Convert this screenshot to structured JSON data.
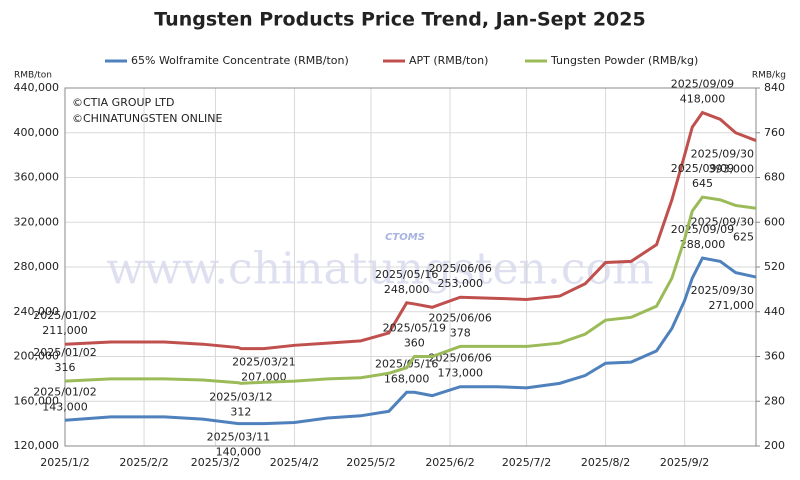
{
  "chart_data": {
    "type": "line",
    "title": "Tungsten Products Price Trend, Jan-Sept 2025",
    "y_unit": "RMB/ton",
    "y2_unit": "RMB/kg",
    "copyright": [
      "©CTIA GROUP LTD",
      "©CHINATUNGSTEN ONLINE"
    ],
    "watermark": "www.chinatungsten.com",
    "watermark_logo": "CTOMS",
    "x": [
      "2025/1/2",
      "2025/1/20",
      "2025/2/10",
      "2025/2/25",
      "2025/3/11",
      "2025/3/12",
      "2025/3/21",
      "2025/4/2",
      "2025/4/15",
      "2025/4/28",
      "2025/5/9",
      "2025/5/16",
      "2025/5/19",
      "2025/5/26",
      "2025/6/6",
      "2025/6/20",
      "2025/7/2",
      "2025/7/15",
      "2025/7/25",
      "2025/8/2",
      "2025/8/12",
      "2025/8/22",
      "2025/8/28",
      "2025/9/2",
      "2025/9/5",
      "2025/9/9",
      "2025/9/16",
      "2025/9/22",
      "2025/9/30"
    ],
    "xlim": [
      "2025/1/2",
      "2025/9/30"
    ],
    "xticks": [
      "2025/1/2",
      "2025/2/2",
      "2025/3/2",
      "2025/4/2",
      "2025/5/2",
      "2025/6/2",
      "2025/7/2",
      "2025/8/2",
      "2025/9/2"
    ],
    "ylim": [
      120000,
      440000
    ],
    "yticks": [
      {
        "value": 120000,
        "label": "120,000"
      },
      {
        "value": 160000,
        "label": "160,000"
      },
      {
        "value": 200000,
        "label": "200,000"
      },
      {
        "value": 240000,
        "label": "240,000"
      },
      {
        "value": 280000,
        "label": "280,000"
      },
      {
        "value": 320000,
        "label": "320,000"
      },
      {
        "value": 360000,
        "label": "360,000"
      },
      {
        "value": 400000,
        "label": "400,000"
      },
      {
        "value": 440000,
        "label": "440,000"
      }
    ],
    "y2lim": [
      200,
      840
    ],
    "y2ticks": [
      200,
      280,
      360,
      440,
      520,
      600,
      680,
      760,
      840
    ],
    "grid": true,
    "series": [
      {
        "name": "65% Wolframite Concentrate (RMB/ton)",
        "color": "#4f81bd",
        "axis": "y",
        "values": [
          143000,
          146000,
          146000,
          144000,
          140000,
          140000,
          140000,
          141000,
          145000,
          147000,
          151000,
          168000,
          168000,
          165000,
          173000,
          173000,
          172000,
          176000,
          183000,
          194000,
          195000,
          205000,
          225000,
          250000,
          270000,
          288000,
          285000,
          275000,
          271000
        ],
        "value_labels": [
          "143,000",
          null,
          null,
          null,
          "140,000",
          null,
          null,
          null,
          null,
          null,
          null,
          "168,000",
          null,
          null,
          "173,000",
          null,
          null,
          null,
          null,
          null,
          null,
          null,
          null,
          null,
          null,
          "288,000",
          null,
          null,
          "271,000"
        ],
        "date_labels": [
          "2025/01/02",
          null,
          null,
          null,
          "2025/03/11",
          null,
          null,
          null,
          null,
          null,
          null,
          "2025/05/16",
          null,
          null,
          "2025/06/06",
          null,
          null,
          null,
          null,
          null,
          null,
          null,
          null,
          null,
          null,
          "2025/09/09",
          null,
          null,
          "2025/09/30"
        ]
      },
      {
        "name": "APT (RMB/ton)",
        "color": "#c0504d",
        "axis": "y",
        "values": [
          211000,
          213000,
          213000,
          211000,
          208000,
          207000,
          207000,
          210000,
          212000,
          214000,
          221000,
          248000,
          247000,
          244000,
          253000,
          252000,
          251000,
          254000,
          265000,
          284000,
          285000,
          300000,
          340000,
          380000,
          405000,
          418000,
          412000,
          400000,
          393000
        ],
        "value_labels": [
          "211,000",
          null,
          null,
          null,
          null,
          null,
          "207,000",
          null,
          null,
          null,
          null,
          "248,000",
          null,
          null,
          "253,000",
          null,
          null,
          null,
          null,
          null,
          null,
          null,
          null,
          null,
          null,
          "418,000",
          null,
          null,
          "393,000"
        ],
        "date_labels": [
          "2025/01/02",
          null,
          null,
          null,
          null,
          null,
          "2025/03/21",
          null,
          null,
          null,
          null,
          "2025/05/16",
          null,
          null,
          "2025/06/06",
          null,
          null,
          null,
          null,
          null,
          null,
          null,
          null,
          null,
          null,
          "2025/09/09",
          null,
          null,
          "2025/09/30"
        ]
      },
      {
        "name": "Tungsten Powder (RMB/kg)",
        "color": "#9bbb59",
        "axis": "y2",
        "values": [
          316,
          320,
          320,
          318,
          313,
          312,
          314,
          316,
          320,
          322,
          330,
          340,
          360,
          360,
          378,
          378,
          378,
          384,
          400,
          425,
          430,
          450,
          500,
          570,
          620,
          645,
          640,
          630,
          625
        ],
        "value_labels": [
          "316",
          null,
          null,
          null,
          null,
          "312",
          null,
          null,
          null,
          null,
          null,
          null,
          "360",
          null,
          "378",
          null,
          null,
          null,
          null,
          null,
          null,
          null,
          null,
          null,
          null,
          "645",
          null,
          null,
          "625"
        ],
        "date_labels": [
          "2025/01/02",
          null,
          null,
          null,
          null,
          "2025/03/12",
          null,
          null,
          null,
          null,
          null,
          null,
          "2025/05/19",
          null,
          "2025/06/06",
          null,
          null,
          null,
          null,
          null,
          null,
          null,
          null,
          null,
          null,
          "2025/09/09",
          null,
          null,
          "2025/09/30"
        ]
      }
    ]
  }
}
